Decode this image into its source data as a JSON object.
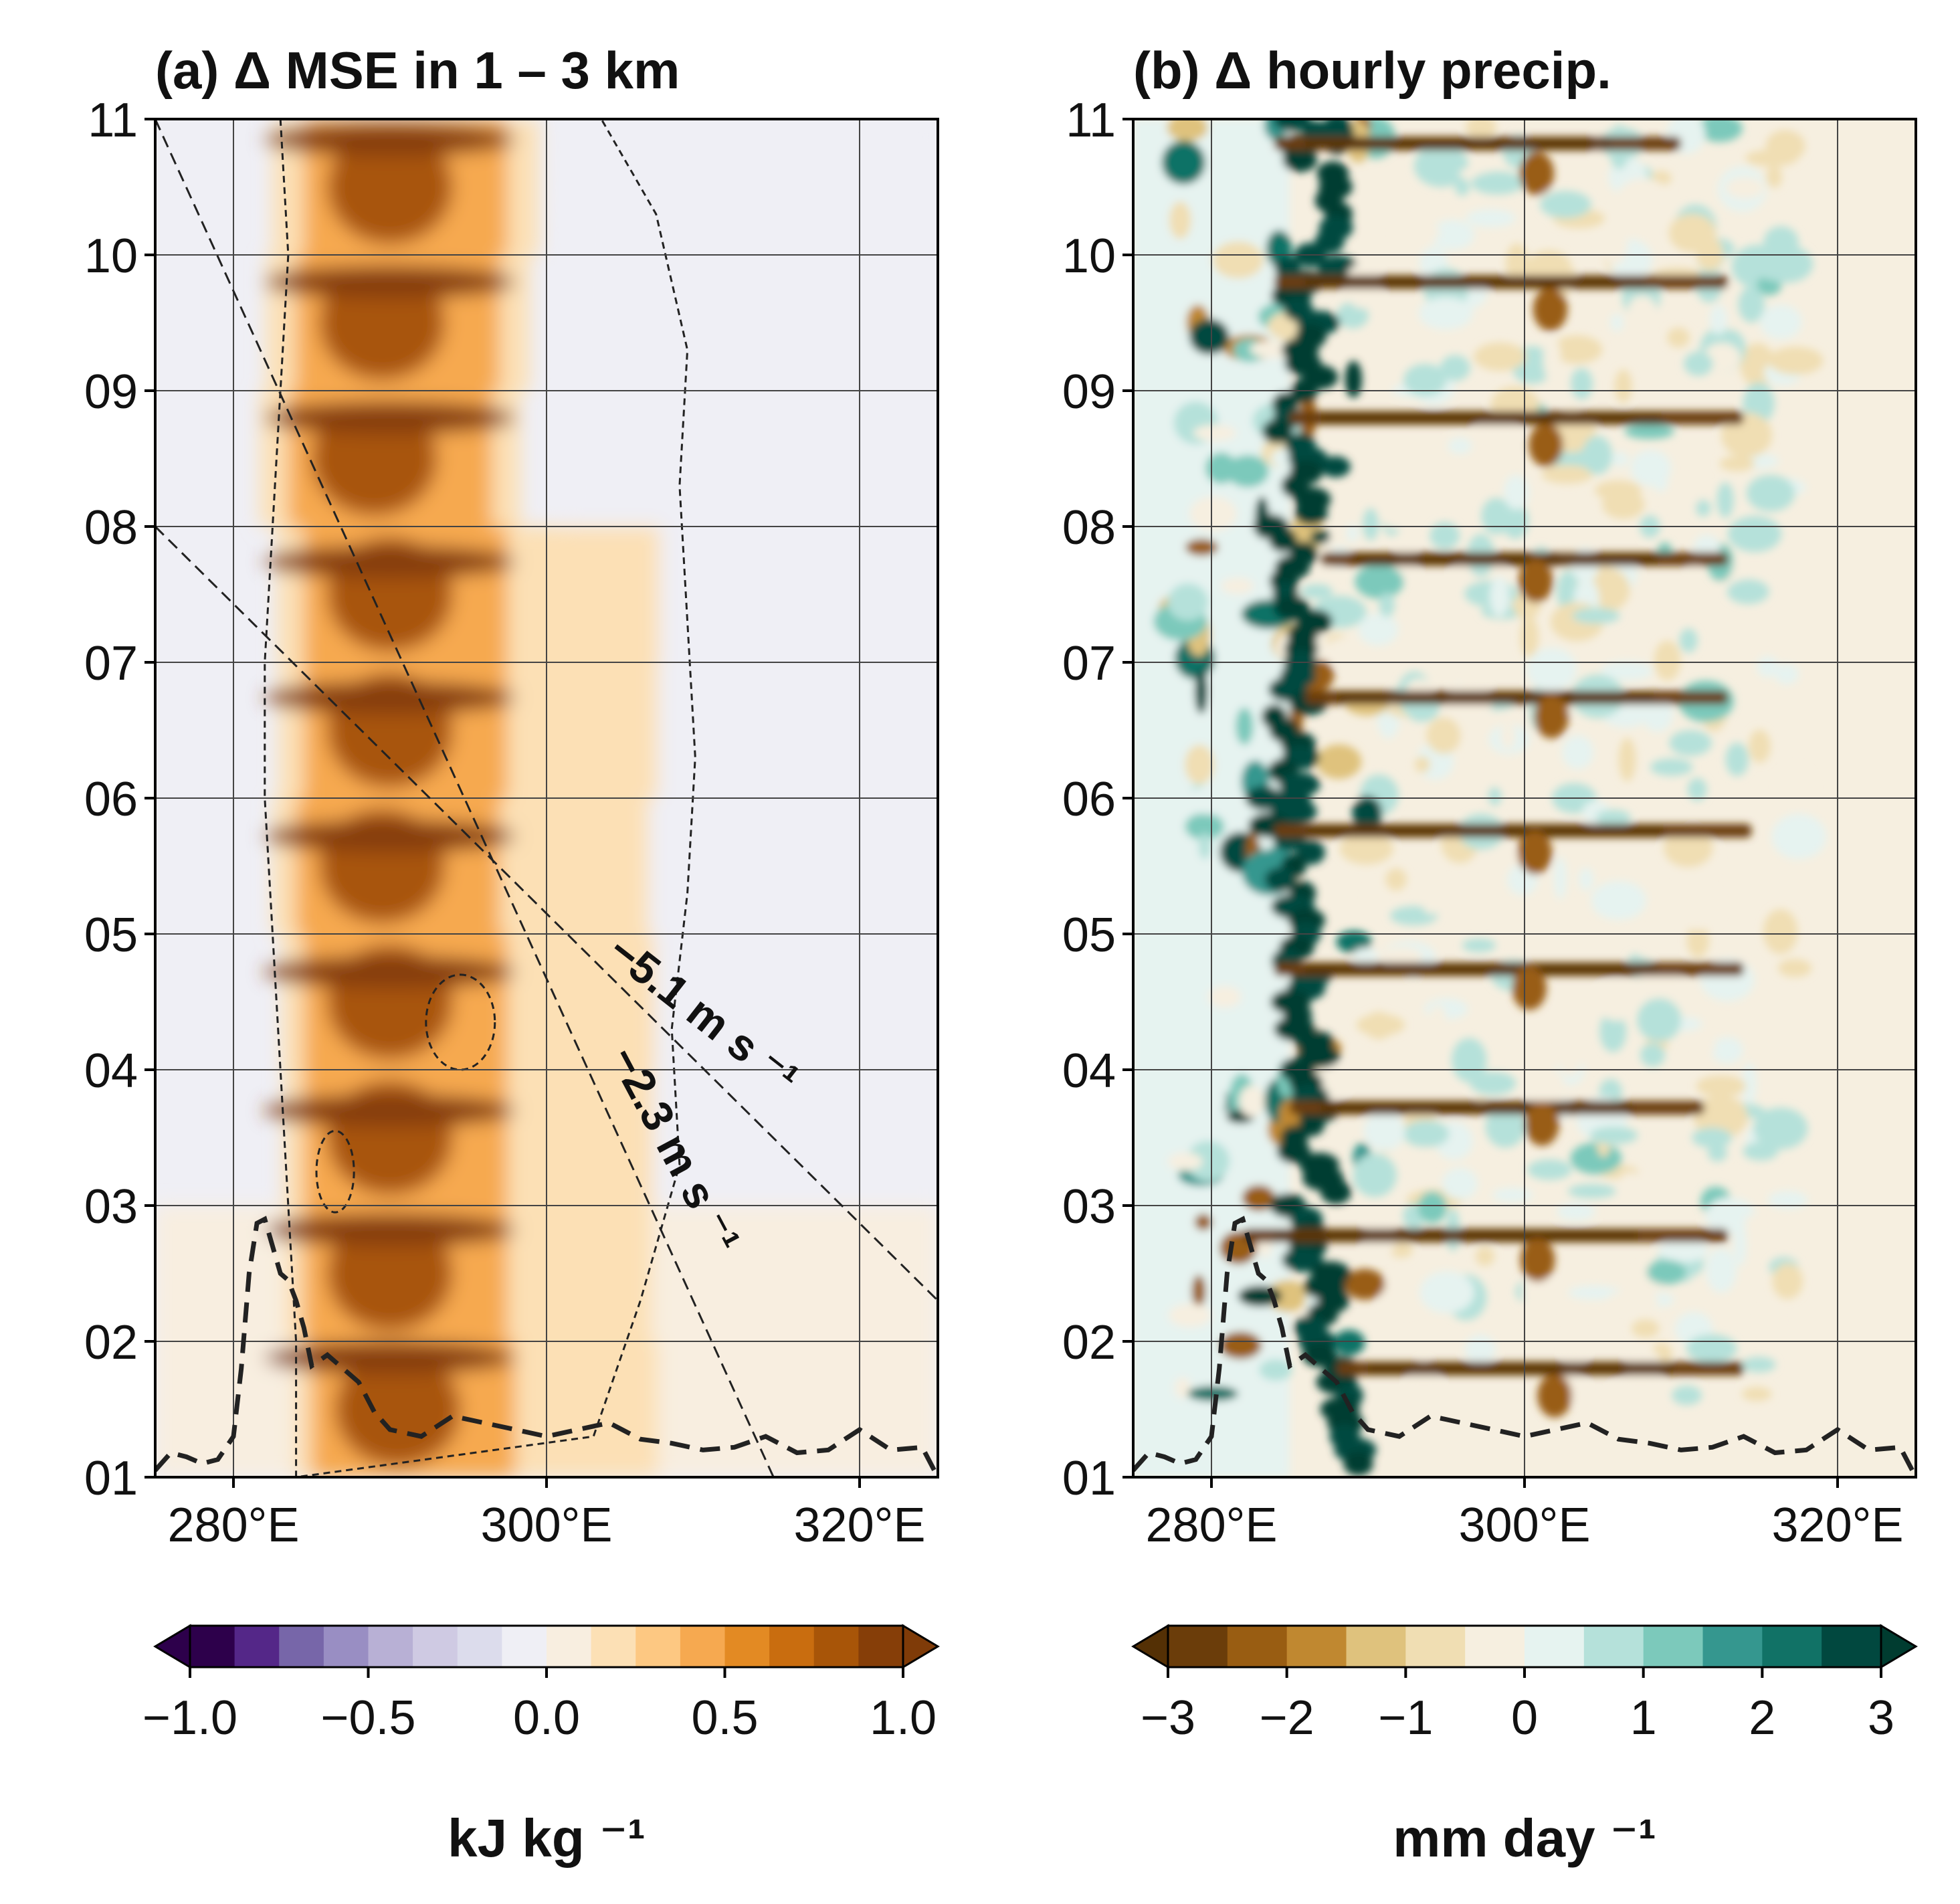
{
  "chart_data": [
    {
      "type": "heatmap",
      "title": "(a) Δ MSE in 1 – 3 km",
      "xlim": [
        275,
        325
      ],
      "ylim": [
        1,
        11
      ],
      "xticks": [
        280,
        300,
        320
      ],
      "xtick_labels": [
        "280°E",
        "300°E",
        "320°E"
      ],
      "yticks": [
        1,
        2,
        3,
        4,
        5,
        6,
        7,
        8,
        9,
        10,
        11
      ],
      "ytick_labels": [
        "01",
        "02",
        "03",
        "04",
        "05",
        "06",
        "07",
        "08",
        "09",
        "10",
        "11"
      ],
      "grid": true,
      "colorbar": {
        "label": "kJ kg ⁻¹",
        "ticks": [
          -1.0,
          -0.5,
          0.0,
          0.5,
          1.0
        ],
        "tick_labels": [
          "−1.0",
          "−0.5",
          "0.0",
          "0.5",
          "1.0"
        ],
        "levels": [
          -1.0,
          -0.875,
          -0.75,
          -0.625,
          -0.5,
          -0.375,
          -0.25,
          -0.125,
          0.0,
          0.125,
          0.25,
          0.375,
          0.5,
          0.625,
          0.75,
          0.875,
          1.0
        ],
        "colors": [
          "#2d004b",
          "#542788",
          "#7766a9",
          "#998ec3",
          "#b8b0d5",
          "#cfcae3",
          "#dcdcec",
          "#efeff5",
          "#f8eee0",
          "#fce0b5",
          "#fdc882",
          "#f6a950",
          "#e38a23",
          "#c96d0f",
          "#a85508",
          "#863e08"
        ],
        "under_color": "#2d004b",
        "over_color": "#7f3b08"
      },
      "phase_lines": [
        {
          "label": "−5.1 m s ⁻¹",
          "x": [
            275,
            325
          ],
          "y": [
            8.0,
            2.3
          ]
        },
        {
          "label": "−2.3 m s ⁻¹",
          "x": [
            275,
            314.5
          ],
          "y": [
            11.0,
            1.0
          ]
        }
      ],
      "terrain_profile": {
        "x": [
          275,
          276,
          277,
          278,
          279,
          280,
          280.5,
          281,
          281.5,
          282,
          282.5,
          283,
          283.5,
          284,
          284.5,
          285,
          286,
          287,
          288,
          289,
          290,
          292,
          294,
          296,
          298,
          300,
          302,
          304,
          306,
          308,
          310,
          312,
          314,
          316,
          318,
          320,
          322,
          324,
          325
        ],
        "y": [
          1.05,
          1.18,
          1.15,
          1.1,
          1.13,
          1.3,
          1.8,
          2.5,
          2.87,
          2.9,
          2.7,
          2.5,
          2.45,
          2.3,
          2.1,
          1.82,
          1.9,
          1.8,
          1.7,
          1.48,
          1.35,
          1.3,
          1.45,
          1.4,
          1.35,
          1.3,
          1.35,
          1.4,
          1.28,
          1.25,
          1.2,
          1.22,
          1.3,
          1.18,
          1.2,
          1.35,
          1.2,
          1.22,
          1.0
        ]
      },
      "features": {
        "core_band_center_x": [
          290,
          289.5,
          289,
          290,
          290,
          289.5,
          290,
          290,
          290,
          290.5
        ],
        "core_band_halfwidth": 4,
        "diurnal_rows_y": [
          1.88,
          2.82,
          3.7,
          4.72,
          5.72,
          6.74,
          7.74,
          8.8,
          9.8,
          10.85
        ]
      }
    },
    {
      "type": "heatmap",
      "title": "(b) Δ hourly precip.",
      "xlim": [
        275,
        325
      ],
      "ylim": [
        1,
        11
      ],
      "xticks": [
        280,
        300,
        320
      ],
      "xtick_labels": [
        "280°E",
        "300°E",
        "320°E"
      ],
      "yticks": [
        1,
        2,
        3,
        4,
        5,
        6,
        7,
        8,
        9,
        10,
        11
      ],
      "ytick_labels": [
        "01",
        "02",
        "03",
        "04",
        "05",
        "06",
        "07",
        "08",
        "09",
        "10",
        "11"
      ],
      "grid": true,
      "colorbar": {
        "label": "mm day ⁻¹",
        "ticks": [
          -3,
          -2,
          -1,
          0,
          1,
          2,
          3
        ],
        "tick_labels": [
          "−3",
          "−2",
          "−1",
          "0",
          "1",
          "2",
          "3"
        ],
        "levels": [
          -3.0,
          -2.5,
          -2.0,
          -1.5,
          -1.0,
          -0.5,
          0.0,
          0.5,
          1.0,
          1.5,
          2.0,
          2.5,
          3.0
        ],
        "colors": [
          "#6b3d0a",
          "#995d12",
          "#c08830",
          "#dfc27d",
          "#f0deb3",
          "#f6efe0",
          "#e6f3f0",
          "#b5e1da",
          "#7cc9bb",
          "#35978f",
          "#117266",
          "#01483f"
        ],
        "under_color": "#543005",
        "over_color": "#003c30"
      },
      "terrain_profile": {
        "x": [
          275,
          276,
          277,
          278,
          279,
          280,
          280.5,
          281,
          281.5,
          282,
          282.5,
          283,
          283.5,
          284,
          284.5,
          285,
          286,
          287,
          288,
          289,
          290,
          292,
          294,
          296,
          298,
          300,
          302,
          304,
          306,
          308,
          310,
          312,
          314,
          316,
          318,
          320,
          322,
          324,
          325
        ],
        "y": [
          1.05,
          1.18,
          1.15,
          1.1,
          1.13,
          1.3,
          1.8,
          2.5,
          2.87,
          2.9,
          2.7,
          2.5,
          2.45,
          2.3,
          2.1,
          1.82,
          1.9,
          1.8,
          1.7,
          1.48,
          1.35,
          1.3,
          1.45,
          1.4,
          1.35,
          1.3,
          1.35,
          1.4,
          1.28,
          1.25,
          1.2,
          1.22,
          1.3,
          1.18,
          1.2,
          1.35,
          1.2,
          1.22,
          1.0
        ]
      },
      "features": {
        "wet_band_x": [
          286,
          285.5,
          285,
          285,
          284.5,
          284.5,
          285,
          285.5,
          286,
          287
        ],
        "dry_rows": [
          {
            "y": 1.8,
            "x": [
              288,
              314
            ]
          },
          {
            "y": 2.78,
            "x": [
              282,
              313
            ]
          },
          {
            "y": 3.72,
            "x": [
              285,
              311.5
            ]
          },
          {
            "y": 4.74,
            "x": [
              284,
              314
            ]
          },
          {
            "y": 5.76,
            "x": [
              284,
              314.5
            ]
          },
          {
            "y": 6.74,
            "x": [
              286,
              313
            ]
          },
          {
            "y": 7.76,
            "x": [
              287,
              313
            ]
          },
          {
            "y": 8.8,
            "x": [
              285,
              314
            ]
          },
          {
            "y": 9.8,
            "x": [
              284,
              313
            ]
          },
          {
            "y": 10.82,
            "x": [
              284,
              310
            ]
          }
        ]
      }
    }
  ]
}
